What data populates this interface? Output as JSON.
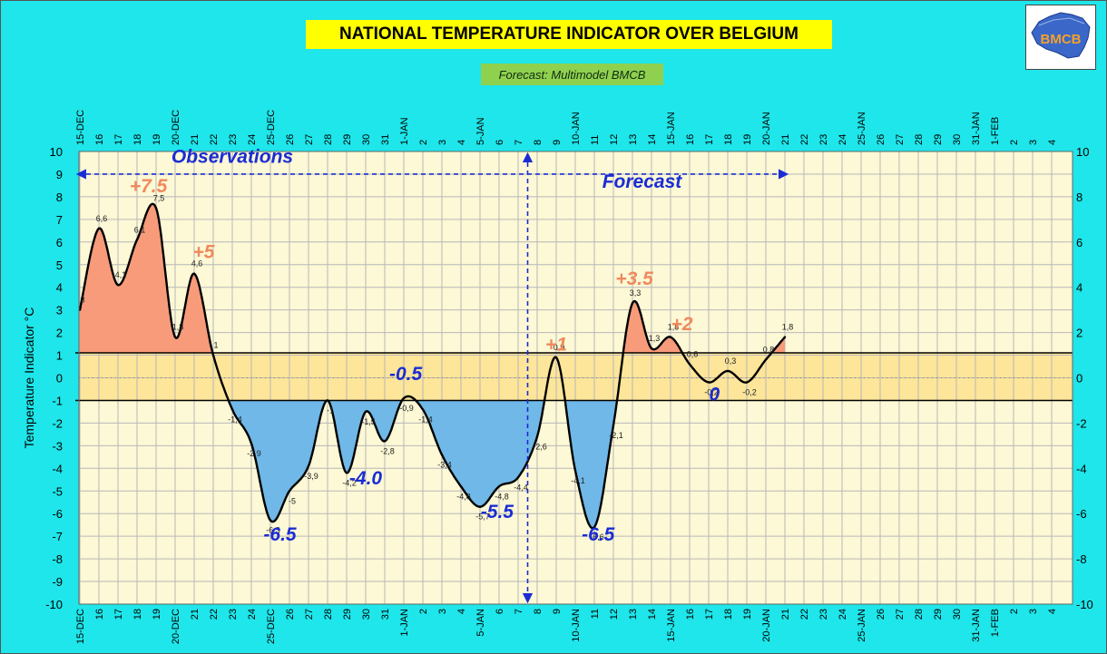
{
  "header": {
    "title": "NATIONAL TEMPERATURE INDICATOR OVER  BELGIUM",
    "subtitle": "Forecast:  Multimodel BMCB",
    "logo_text": "BMCB"
  },
  "chart_data": {
    "type": "area",
    "ylabel": "Temperature Indicator   °C",
    "ylim": [
      -10,
      10
    ],
    "yticks": [
      -10,
      -9,
      -8,
      -7,
      -6,
      -5,
      -4,
      -3,
      -2,
      -1,
      0,
      1,
      2,
      3,
      4,
      5,
      6,
      7,
      8,
      9,
      10
    ],
    "yticks_right": [
      -10,
      -8,
      -6,
      -4,
      -2,
      0,
      2,
      4,
      6,
      8,
      10
    ],
    "x_labels": [
      "15-DEC",
      "16",
      "17",
      "18",
      "19",
      "20-DEC",
      "21",
      "22",
      "23",
      "24",
      "25-DEC",
      "26",
      "27",
      "28",
      "29",
      "30",
      "31",
      "1-JAN",
      "2",
      "3",
      "4",
      "5-JAN",
      "6",
      "7",
      "8",
      "9",
      "10-JAN",
      "11",
      "12",
      "13",
      "14",
      "15-JAN",
      "16",
      "17",
      "18",
      "19",
      "20-JAN",
      "21",
      "22",
      "23",
      "24",
      "25-JAN",
      "26",
      "27",
      "28",
      "29",
      "30",
      "31-JAN",
      "1-FEB",
      "2",
      "3",
      "4"
    ],
    "normal_band": [
      -1,
      1.1
    ],
    "observation_end_index": 23.5,
    "series": [
      {
        "name": "",
        "x_index": [
          0,
          1,
          2,
          3,
          4,
          5,
          6,
          7,
          8,
          9,
          10,
          11,
          12,
          13,
          14,
          15,
          16,
          17,
          18,
          19,
          20,
          21,
          22,
          23,
          24,
          25,
          26,
          27,
          28,
          29,
          30,
          31,
          32,
          33,
          34,
          35,
          36,
          37
        ],
        "values": [
          3,
          6.6,
          4.1,
          6.1,
          7.5,
          1.8,
          4.6,
          1.0,
          -1.4,
          -2.9,
          -6.3,
          -5.0,
          -3.9,
          -1.0,
          -4.2,
          -1.5,
          -2.8,
          -0.9,
          -1.4,
          -3.4,
          -4.8,
          -5.7,
          -4.8,
          -4.4,
          -2.6,
          0.9,
          -4.1,
          -6.6,
          -2.1,
          3.3,
          1.3,
          1.8,
          0.6,
          -0.2,
          0.3,
          -0.2,
          0.8,
          1.8
        ],
        "point_labels": [
          "3",
          "6,6",
          "4,1",
          "6,1",
          "7,5",
          "1,8",
          "4,6",
          "1",
          "-1,4",
          "-2,9",
          "-6,3",
          "-5",
          "-3,9",
          "-1",
          "-4,2",
          "-1,5",
          "-2,8",
          "-0,9",
          "-1,4",
          "-3,4",
          "-4,8",
          "-5,7",
          "-4,8",
          "-4,4",
          "-2,6",
          "0,9",
          "-4,1",
          "-6,6",
          "-2,1",
          "3,3",
          "1,3",
          "1,8",
          "0,6",
          "-0,2",
          "0,3",
          "-0,2",
          "0,8",
          "1,8"
        ]
      }
    ],
    "annotations": [
      {
        "text": "Observations",
        "x": 8,
        "y": 9.5,
        "color": "#1a2cd4"
      },
      {
        "text": "Forecast",
        "x": 29.5,
        "y": 8.4,
        "color": "#1a2cd4"
      },
      {
        "text": "+7.5",
        "x": 3.6,
        "y": 8.2,
        "color": "#ef8a5d"
      },
      {
        "text": "+5",
        "x": 6.5,
        "y": 5.3,
        "color": "#ef8a5d"
      },
      {
        "text": "+3.5",
        "x": 29.1,
        "y": 4.1,
        "color": "#ef8a5d"
      },
      {
        "text": "+2",
        "x": 31.6,
        "y": 2.1,
        "color": "#ef8a5d"
      },
      {
        "text": "+1",
        "x": 25,
        "y": 1.2,
        "color": "#ef8a5d"
      },
      {
        "text": "-0.5",
        "x": 17.1,
        "y": -0.1,
        "color": "#1a2cd4"
      },
      {
        "text": "-4.0",
        "x": 15,
        "y": -4.7,
        "color": "#1a2cd4"
      },
      {
        "text": "-5.5",
        "x": 21.9,
        "y": -6.2,
        "color": "#1a2cd4"
      },
      {
        "text": "-6.5",
        "x": 10.5,
        "y": -7.2,
        "color": "#1a2cd4"
      },
      {
        "text": "-6.5",
        "x": 27.2,
        "y": -7.2,
        "color": "#1a2cd4"
      },
      {
        "text": "0",
        "x": 33.3,
        "y": -1.0,
        "color": "#1a2cd4"
      }
    ],
    "colors": {
      "background": "#1ee6ea",
      "plot_background": "#fdf8d5",
      "grid": "#b8b8b8",
      "normal_band": "#fde59a",
      "positive_fill": "#f79b7b",
      "negative_fill": "#6fb8e8",
      "curve": "#000000",
      "arrow": "#1a2cd4",
      "annotation_blue": "#1a2cd4",
      "annotation_orange": "#ef8a5d"
    }
  }
}
